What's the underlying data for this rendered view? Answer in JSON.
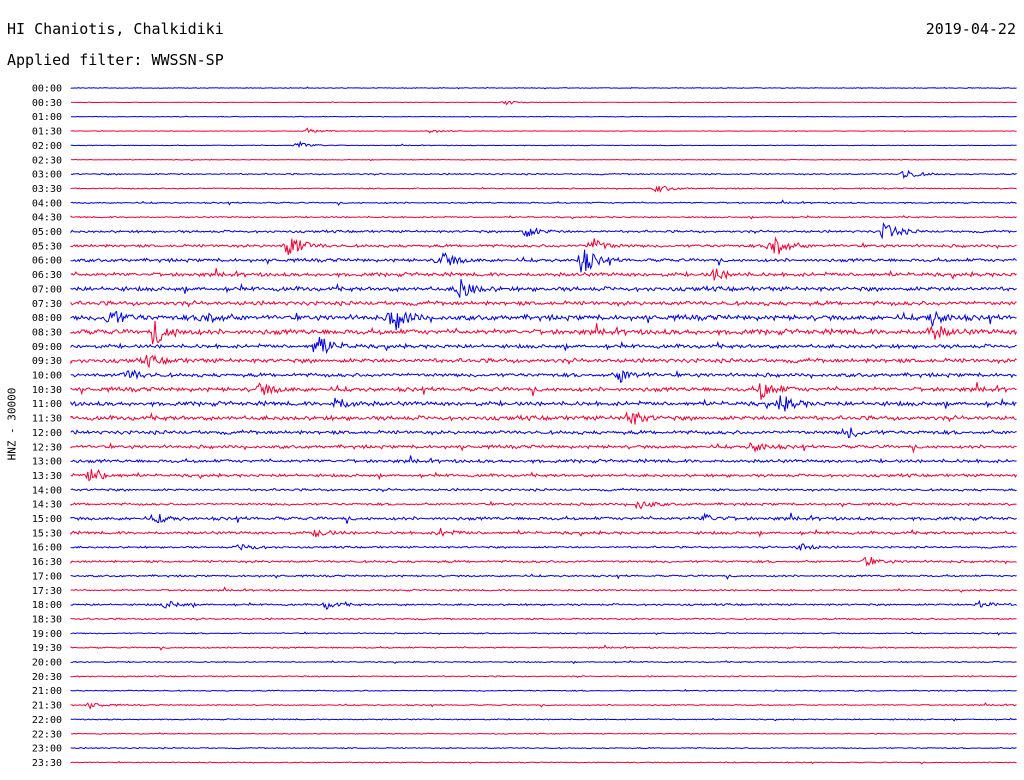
{
  "header": {
    "station": "HI Chaniotis, Chalkidiki",
    "date": "2019-04-22",
    "filter": "Applied filter: WWSSN-SP"
  },
  "axis": {
    "ylabel": "HNZ - 30000"
  },
  "colors": {
    "even_row": "#0000dd",
    "odd_row": "#ee0033",
    "background": "#ffffff"
  },
  "chart_data": {
    "type": "line",
    "title": "HI Chaniotis, Chalkidiki",
    "subtitle": "Applied filter: WWSSN-SP",
    "ylabel": "HNZ - 30000",
    "rows": [
      "00:00",
      "00:30",
      "01:00",
      "01:30",
      "02:00",
      "02:30",
      "03:00",
      "03:30",
      "04:00",
      "04:30",
      "05:00",
      "05:30",
      "06:00",
      "06:30",
      "07:00",
      "07:30",
      "08:00",
      "08:30",
      "09:00",
      "09:30",
      "10:00",
      "10:30",
      "11:00",
      "11:30",
      "12:00",
      "12:30",
      "13:00",
      "13:30",
      "14:00",
      "14:30",
      "15:00",
      "15:30",
      "16:00",
      "16:30",
      "17:00",
      "17:30",
      "18:00",
      "18:30",
      "19:00",
      "19:30",
      "20:00",
      "20:30",
      "21:00",
      "21:30",
      "22:00",
      "22:30",
      "23:00",
      "23:30"
    ],
    "noise_level": [
      0.3,
      0.2,
      0.3,
      0.2,
      0.3,
      0.3,
      0.6,
      0.5,
      0.6,
      0.6,
      1.0,
      1.2,
      1.4,
      1.6,
      1.8,
      1.8,
      2.2,
      2.2,
      1.6,
      1.8,
      1.6,
      1.8,
      1.8,
      1.8,
      1.6,
      1.4,
      1.4,
      1.2,
      1.0,
      1.0,
      1.4,
      1.2,
      0.8,
      1.0,
      0.8,
      0.7,
      0.8,
      0.7,
      0.5,
      0.6,
      0.5,
      0.5,
      0.5,
      0.5,
      0.5,
      0.4,
      0.5,
      0.4
    ],
    "events": [
      {
        "row": 1,
        "t": 0.46,
        "amp": 2
      },
      {
        "row": 3,
        "t": 0.25,
        "amp": 3
      },
      {
        "row": 3,
        "t": 0.38,
        "amp": 2
      },
      {
        "row": 4,
        "t": 0.24,
        "amp": 4
      },
      {
        "row": 6,
        "t": 0.88,
        "amp": 6
      },
      {
        "row": 7,
        "t": 0.62,
        "amp": 4
      },
      {
        "row": 10,
        "t": 0.48,
        "amp": 6
      },
      {
        "row": 10,
        "t": 0.86,
        "amp": 10
      },
      {
        "row": 11,
        "t": 0.23,
        "amp": 14
      },
      {
        "row": 11,
        "t": 0.55,
        "amp": 8
      },
      {
        "row": 11,
        "t": 0.74,
        "amp": 16
      },
      {
        "row": 12,
        "t": 0.39,
        "amp": 10
      },
      {
        "row": 12,
        "t": 0.54,
        "amp": 14
      },
      {
        "row": 13,
        "t": 0.68,
        "amp": 6
      },
      {
        "row": 14,
        "t": 0.41,
        "amp": 11
      },
      {
        "row": 16,
        "t": 0.04,
        "amp": 10
      },
      {
        "row": 16,
        "t": 0.14,
        "amp": 8
      },
      {
        "row": 16,
        "t": 0.34,
        "amp": 14
      },
      {
        "row": 16,
        "t": 0.91,
        "amp": 8
      },
      {
        "row": 17,
        "t": 0.09,
        "amp": 12
      },
      {
        "row": 17,
        "t": 0.91,
        "amp": 8
      },
      {
        "row": 18,
        "t": 0.26,
        "amp": 14
      },
      {
        "row": 19,
        "t": 0.08,
        "amp": 5
      },
      {
        "row": 20,
        "t": 0.06,
        "amp": 6
      },
      {
        "row": 20,
        "t": 0.58,
        "amp": 7
      },
      {
        "row": 21,
        "t": 0.2,
        "amp": 6
      },
      {
        "row": 21,
        "t": 0.73,
        "amp": 10
      },
      {
        "row": 22,
        "t": 0.28,
        "amp": 7
      },
      {
        "row": 22,
        "t": 0.75,
        "amp": 9
      },
      {
        "row": 23,
        "t": 0.59,
        "amp": 8
      },
      {
        "row": 24,
        "t": 0.82,
        "amp": 6
      },
      {
        "row": 25,
        "t": 0.72,
        "amp": 6
      },
      {
        "row": 27,
        "t": 0.02,
        "amp": 9
      },
      {
        "row": 29,
        "t": 0.6,
        "amp": 5
      },
      {
        "row": 30,
        "t": 0.09,
        "amp": 4
      },
      {
        "row": 30,
        "t": 0.67,
        "amp": 4
      },
      {
        "row": 31,
        "t": 0.26,
        "amp": 4
      },
      {
        "row": 31,
        "t": 0.39,
        "amp": 4
      },
      {
        "row": 32,
        "t": 0.18,
        "amp": 4
      },
      {
        "row": 32,
        "t": 0.77,
        "amp": 4
      },
      {
        "row": 33,
        "t": 0.84,
        "amp": 4
      },
      {
        "row": 36,
        "t": 0.1,
        "amp": 4
      },
      {
        "row": 36,
        "t": 0.27,
        "amp": 4
      },
      {
        "row": 36,
        "t": 0.96,
        "amp": 4
      },
      {
        "row": 43,
        "t": 0.02,
        "amp": 3
      }
    ]
  }
}
